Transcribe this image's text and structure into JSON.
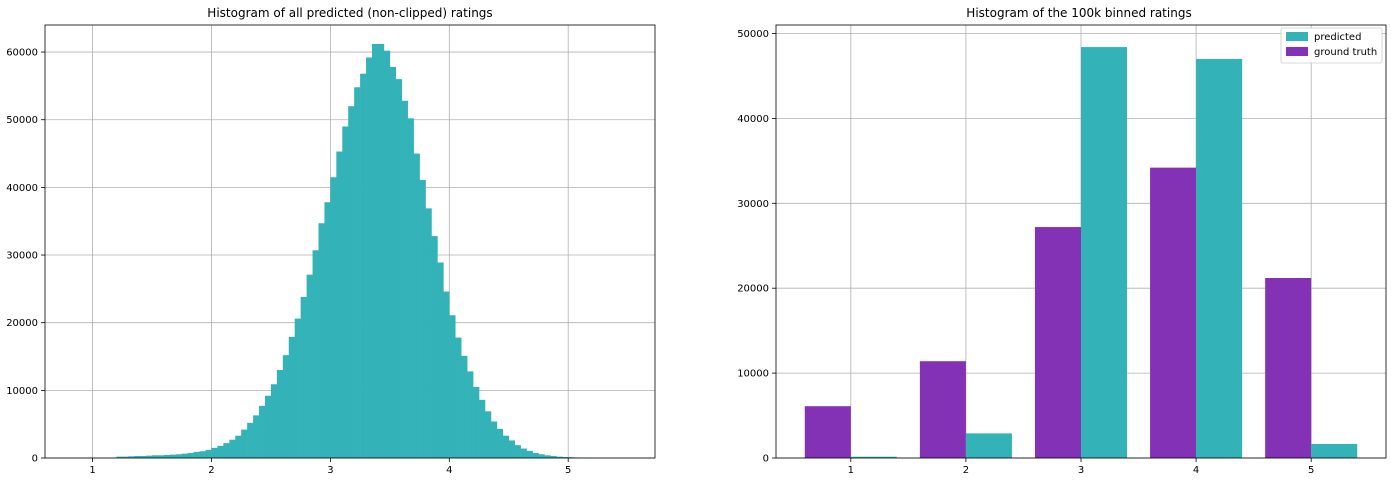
{
  "chart_data": [
    {
      "type": "bar",
      "title": "Histogram of all predicted (non-clipped) ratings",
      "xlabel": "",
      "ylabel": "",
      "xlim": [
        0.6,
        5.73
      ],
      "ylim": [
        0,
        64000
      ],
      "xticks": [
        1,
        2,
        3,
        4,
        5
      ],
      "yticks": [
        0,
        10000,
        20000,
        30000,
        40000,
        50000,
        60000
      ],
      "grid": true,
      "bin_width": 0.05,
      "color": "#33b3b8",
      "bins": [
        [
          1.2,
          200
        ],
        [
          1.25,
          200
        ],
        [
          1.3,
          250
        ],
        [
          1.35,
          300
        ],
        [
          1.4,
          300
        ],
        [
          1.45,
          350
        ],
        [
          1.5,
          400
        ],
        [
          1.55,
          400
        ],
        [
          1.6,
          450
        ],
        [
          1.65,
          500
        ],
        [
          1.7,
          550
        ],
        [
          1.75,
          650
        ],
        [
          1.8,
          750
        ],
        [
          1.85,
          900
        ],
        [
          1.9,
          1000
        ],
        [
          1.95,
          1200
        ],
        [
          2.0,
          1500
        ],
        [
          2.05,
          1800
        ],
        [
          2.1,
          2200
        ],
        [
          2.15,
          2700
        ],
        [
          2.2,
          3300
        ],
        [
          2.25,
          4200
        ],
        [
          2.3,
          5200
        ],
        [
          2.35,
          6300
        ],
        [
          2.4,
          7700
        ],
        [
          2.45,
          9200
        ],
        [
          2.5,
          10900
        ],
        [
          2.55,
          13000
        ],
        [
          2.6,
          15200
        ],
        [
          2.65,
          17900
        ],
        [
          2.7,
          20600
        ],
        [
          2.75,
          23800
        ],
        [
          2.8,
          27100
        ],
        [
          2.85,
          30700
        ],
        [
          2.9,
          34700
        ],
        [
          2.95,
          37800
        ],
        [
          3.0,
          41500
        ],
        [
          3.05,
          45300
        ],
        [
          3.1,
          49000
        ],
        [
          3.15,
          52000
        ],
        [
          3.2,
          54800
        ],
        [
          3.25,
          56800
        ],
        [
          3.3,
          59200
        ],
        [
          3.35,
          61200
        ],
        [
          3.4,
          61200
        ],
        [
          3.45,
          60200
        ],
        [
          3.5,
          57800
        ],
        [
          3.55,
          56000
        ],
        [
          3.6,
          52800
        ],
        [
          3.65,
          50200
        ],
        [
          3.7,
          45000
        ],
        [
          3.75,
          41100
        ],
        [
          3.8,
          36900
        ],
        [
          3.85,
          32800
        ],
        [
          3.9,
          28900
        ],
        [
          3.95,
          24600
        ],
        [
          4.0,
          21100
        ],
        [
          4.05,
          17800
        ],
        [
          4.1,
          15100
        ],
        [
          4.15,
          12800
        ],
        [
          4.2,
          10500
        ],
        [
          4.25,
          8600
        ],
        [
          4.3,
          6900
        ],
        [
          4.35,
          5400
        ],
        [
          4.4,
          4300
        ],
        [
          4.45,
          3300
        ],
        [
          4.5,
          2600
        ],
        [
          4.55,
          1900
        ],
        [
          4.6,
          1400
        ],
        [
          4.65,
          1050
        ],
        [
          4.7,
          750
        ],
        [
          4.75,
          550
        ],
        [
          4.8,
          400
        ],
        [
          4.85,
          300
        ],
        [
          4.9,
          200
        ],
        [
          4.95,
          150
        ],
        [
          5.0,
          120
        ],
        [
          5.05,
          80
        ],
        [
          5.1,
          60
        ],
        [
          5.15,
          40
        ]
      ]
    },
    {
      "type": "bar",
      "title": "Histogram of the 100k binned ratings",
      "xlabel": "",
      "ylabel": "",
      "categories": [
        "1",
        "2",
        "3",
        "4",
        "5"
      ],
      "xlim": [
        0.35,
        5.65
      ],
      "ylim": [
        0,
        51000
      ],
      "yticks": [
        0,
        10000,
        20000,
        30000,
        40000,
        50000
      ],
      "grid": true,
      "legend": "top-right",
      "series": [
        {
          "name": "predicted",
          "color": "#33b3b8",
          "values": [
            150,
            2900,
            48400,
            47000,
            1650
          ]
        },
        {
          "name": "ground truth",
          "color": "#8332b6",
          "values": [
            6100,
            11400,
            27200,
            34200,
            21200
          ]
        }
      ]
    }
  ]
}
